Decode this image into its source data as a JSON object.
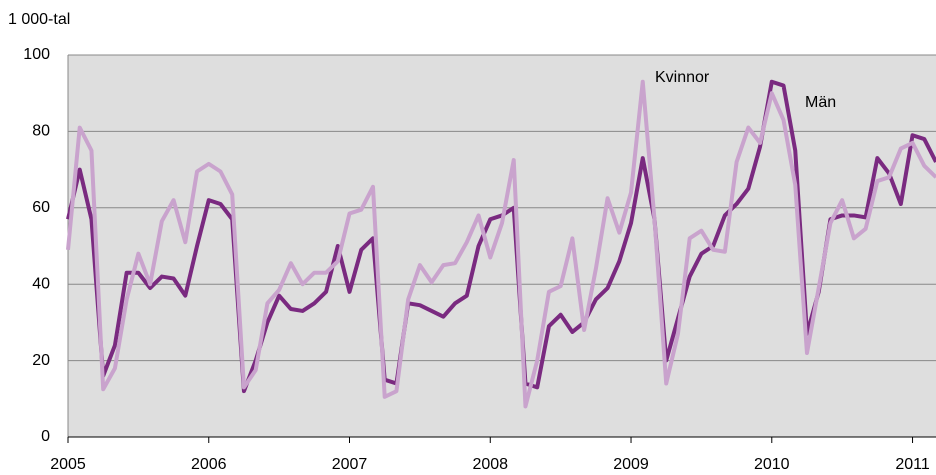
{
  "chart_data": {
    "type": "line",
    "y_axis_label": "1 000-tal",
    "annotations": [
      "Kvinnor",
      "Män"
    ],
    "categories": [
      "2005",
      null,
      null,
      null,
      null,
      null,
      null,
      null,
      null,
      null,
      null,
      null,
      "2006",
      null,
      null,
      null,
      null,
      null,
      null,
      null,
      null,
      null,
      null,
      null,
      "2007",
      null,
      null,
      null,
      null,
      null,
      null,
      null,
      null,
      null,
      null,
      null,
      "2008",
      null,
      null,
      null,
      null,
      null,
      null,
      null,
      null,
      null,
      null,
      null,
      "2009",
      null,
      null,
      null,
      null,
      null,
      null,
      null,
      null,
      null,
      null,
      null,
      "2010",
      null,
      null,
      null,
      null,
      null,
      null,
      null,
      null,
      null,
      null,
      null,
      "2011",
      null,
      null
    ],
    "series": [
      {
        "name": "Män",
        "color": "#7a2a80",
        "values": [
          57,
          70,
          57,
          16,
          24,
          43,
          43,
          39,
          42,
          41.5,
          37,
          50,
          62,
          61,
          57,
          12,
          20,
          30,
          37,
          33.5,
          33,
          35,
          38,
          50,
          38,
          49,
          52,
          15,
          14,
          35,
          34.5,
          33,
          31.5,
          35,
          37,
          50,
          57,
          58,
          60,
          14,
          13,
          29,
          32,
          27.5,
          30,
          36,
          39,
          46,
          56,
          73,
          57,
          20,
          31,
          42,
          48,
          50,
          58,
          61,
          65,
          76,
          93,
          92,
          75,
          27,
          38,
          57,
          58,
          58,
          57.5,
          73,
          69,
          61,
          79,
          78,
          72
        ]
      },
      {
        "name": "Kvinnor",
        "color": "#c9a3cd",
        "values": [
          49,
          81,
          75,
          12.5,
          18,
          36,
          48,
          40,
          56.5,
          62,
          51,
          69.5,
          71.5,
          69.5,
          63.5,
          13,
          17.5,
          35,
          38.5,
          45.5,
          40,
          43,
          43,
          46,
          58.5,
          59.5,
          65.5,
          10.5,
          12,
          36,
          45,
          40.5,
          45,
          45.5,
          51,
          58,
          47,
          56,
          72.5,
          8,
          20,
          38,
          39.5,
          52,
          28,
          44,
          62.5,
          53.5,
          64,
          93,
          57,
          14,
          27,
          52,
          54,
          49,
          48.5,
          72,
          81,
          77,
          90,
          83,
          66,
          22,
          39,
          56,
          62,
          52,
          54.5,
          67,
          68,
          75.5,
          77,
          71,
          68
        ]
      }
    ],
    "ylim": [
      0,
      100
    ],
    "yticks": [
      0,
      20,
      40,
      60,
      80,
      100
    ],
    "grid": true
  }
}
